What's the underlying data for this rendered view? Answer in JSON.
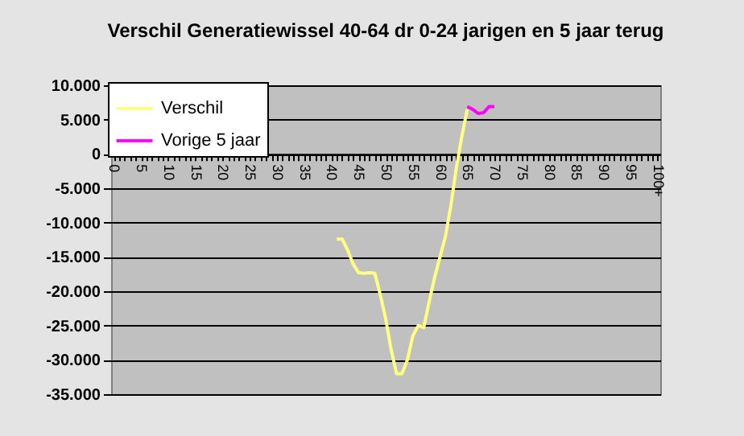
{
  "chart_data": {
    "type": "line",
    "title": "Verschil Generatiewissel 40-64 dr 0-24 jarigen en 5 jaar terug",
    "categories": [
      "0",
      null,
      null,
      null,
      null,
      "5",
      null,
      null,
      null,
      null,
      "10",
      null,
      null,
      null,
      null,
      "15",
      null,
      null,
      null,
      null,
      "20",
      null,
      null,
      null,
      null,
      "25",
      null,
      null,
      null,
      null,
      "30",
      null,
      null,
      null,
      null,
      "35",
      null,
      null,
      null,
      null,
      "40",
      null,
      null,
      null,
      null,
      "45",
      null,
      null,
      null,
      null,
      "50",
      null,
      null,
      null,
      null,
      "55",
      null,
      null,
      null,
      null,
      "60",
      null,
      null,
      null,
      null,
      "65",
      null,
      null,
      null,
      null,
      "70",
      null,
      null,
      null,
      null,
      "75",
      null,
      null,
      null,
      null,
      "80",
      null,
      null,
      null,
      null,
      "85",
      null,
      null,
      null,
      null,
      "90",
      null,
      null,
      null,
      null,
      "95",
      null,
      null,
      null,
      null,
      "100+"
    ],
    "series": [
      {
        "name": "Verschil",
        "color": "#ffff80",
        "values": [
          null,
          null,
          null,
          null,
          null,
          null,
          null,
          null,
          null,
          null,
          null,
          null,
          null,
          null,
          null,
          null,
          null,
          null,
          null,
          null,
          null,
          null,
          null,
          null,
          null,
          null,
          null,
          null,
          null,
          null,
          null,
          null,
          null,
          null,
          null,
          null,
          null,
          null,
          null,
          null,
          null,
          -12400,
          -12400,
          -14000,
          -16000,
          -17300,
          -17400,
          -17300,
          -17400,
          -20500,
          -24000,
          -28500,
          -32000,
          -32000,
          -30000,
          -26500,
          -25000,
          -25300,
          -21500,
          -18000,
          -15000,
          -12000,
          -7500,
          -2000,
          2500,
          6500,
          null,
          null,
          null,
          null,
          null,
          null,
          null,
          null,
          null,
          null,
          null,
          null,
          null,
          null,
          null,
          null,
          null,
          null,
          null,
          null,
          null,
          null,
          null,
          null,
          null,
          null,
          null,
          null,
          null,
          null,
          null,
          null,
          null,
          null,
          null
        ]
      },
      {
        "name": "Vorige 5 jaar",
        "color": "#ff00ff",
        "values": [
          null,
          null,
          null,
          null,
          null,
          null,
          null,
          null,
          null,
          null,
          null,
          null,
          null,
          null,
          null,
          null,
          null,
          null,
          null,
          null,
          null,
          null,
          null,
          null,
          null,
          null,
          null,
          null,
          null,
          null,
          null,
          null,
          null,
          null,
          null,
          null,
          null,
          null,
          null,
          null,
          null,
          null,
          null,
          null,
          null,
          null,
          null,
          null,
          null,
          null,
          null,
          null,
          null,
          null,
          null,
          null,
          null,
          null,
          null,
          null,
          null,
          null,
          null,
          null,
          null,
          6900,
          6500,
          5900,
          6000,
          6900,
          6900,
          null,
          null,
          null,
          null,
          null,
          null,
          null,
          null,
          null,
          null,
          null,
          null,
          null,
          null,
          null,
          null,
          null,
          null,
          null,
          null,
          null,
          null,
          null,
          null,
          null,
          null,
          null,
          null,
          null,
          null
        ]
      }
    ],
    "ylim": [
      -35000,
      10000
    ],
    "yticks": [
      {
        "value": -35000,
        "label": "-35.000"
      },
      {
        "value": -30000,
        "label": "-30.000"
      },
      {
        "value": -25000,
        "label": "-25.000"
      },
      {
        "value": -20000,
        "label": "-20.000"
      },
      {
        "value": -15000,
        "label": "-15.000"
      },
      {
        "value": -10000,
        "label": "-10.000"
      },
      {
        "value": -5000,
        "label": "-5.000"
      },
      {
        "value": 0,
        "label": "0"
      },
      {
        "value": 5000,
        "label": "5.000"
      },
      {
        "value": 10000,
        "label": "10.000"
      }
    ],
    "grid": "y",
    "legend": "top left",
    "marker": "none"
  }
}
